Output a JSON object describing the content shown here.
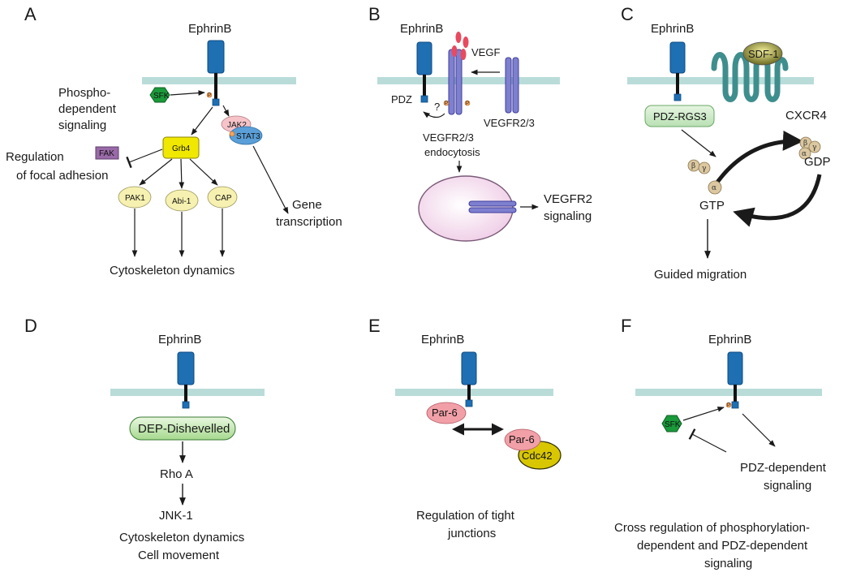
{
  "colors": {
    "membrane": "#b9dcd9",
    "receptor": "#1f6fb3",
    "receptor_dark": "#0d4a80",
    "vegfr": "#7f7fd0",
    "vegf_ligand": "#e84a5f",
    "sfk": "#1a9a3a",
    "grb4": "#f0e800",
    "fak": "#9a6aa8",
    "yellow_node": "#f6f1b0",
    "jak2": "#f5c3c8",
    "stat3": "#5a9fd8",
    "pdz_rgs3": "#cde9c8",
    "cxcr4": "#4fa0a0",
    "sdf1": "#d8d35a",
    "g_protein": "#dcc8a0",
    "vesicle": "#f4dff0",
    "par6": "#f2a0a8",
    "cdc42": "#d8c700",
    "dep": "#c7ebb5",
    "phospho": "#f2a45e"
  },
  "panels": {
    "A": {
      "letter": "A",
      "ephrin": "EphrinB",
      "phospho_line1": "Phospho-",
      "phospho_line2": "dependent",
      "phospho_line3": "signaling",
      "sfk": "SFK",
      "jak2": "JAK2",
      "stat3": "STAT3",
      "grb4": "Grb4",
      "fak": "FAK",
      "focal_line1": "Regulation",
      "focal_line2": "of focal adhesion",
      "pak1": "PAK1",
      "abi1": "Abi-1",
      "cap": "CAP",
      "gene_line1": "Gene",
      "gene_line2": "transcription",
      "cytoskeleton": "Cytoskeleton dynamics",
      "p": "P"
    },
    "B": {
      "letter": "B",
      "ephrin": "EphrinB",
      "vegf": "VEGF",
      "pdz": "PDZ",
      "question": "?",
      "vegfr23": "VEGFR2/3",
      "endo_line1": "VEGFR2/3",
      "endo_line2": "endocytosis",
      "signal_line1": "VEGFR2",
      "signal_line2": "signaling",
      "p": "P"
    },
    "C": {
      "letter": "C",
      "ephrin": "EphrinB",
      "sdf1": "SDF-1",
      "cxcr4": "CXCR4",
      "pdz_rgs3": "PDZ-RGS3",
      "gdp": "GDP",
      "gtp": "GTP",
      "alpha": "α",
      "beta": "β",
      "gamma": "γ",
      "migration": "Guided migration"
    },
    "D": {
      "letter": "D",
      "ephrin": "EphrinB",
      "dep": "DEP-Dishevelled",
      "rhoa": "Rho A",
      "jnk1": "JNK-1",
      "out_line1": "Cytoskeleton dynamics",
      "out_line2": "Cell movement"
    },
    "E": {
      "letter": "E",
      "ephrin": "EphrinB",
      "par6_a": "Par-6",
      "par6_b": "Par-6",
      "cdc42": "Cdc42",
      "out_line1": "Regulation of tight",
      "out_line2": "junctions"
    },
    "F": {
      "letter": "F",
      "ephrin": "EphrinB",
      "sfk": "SFK",
      "pdz_line1": "PDZ-dependent",
      "pdz_line2": "signaling",
      "cross_line1": "Cross regulation of phosphorylation-",
      "cross_line2": "dependent and PDZ-dependent",
      "cross_line3": "signaling",
      "p": "P"
    }
  }
}
